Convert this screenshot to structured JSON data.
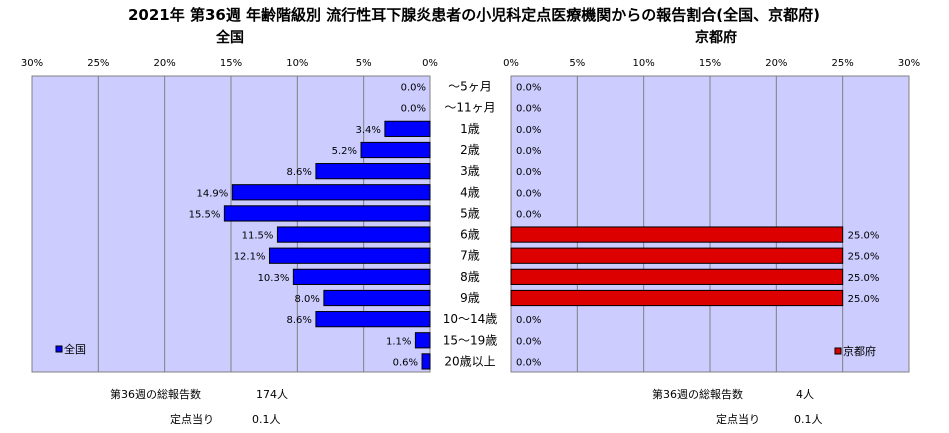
{
  "chart_data": {
    "type": "bar",
    "orientation": "horizontal",
    "title": "2021年 第36週 年齢階級別 流行性耳下腺炎患者の小児科定点医療機関からの報告割合(全国、京都府)",
    "categories": [
      "～5ヶ月",
      "～11ヶ月",
      "1歳",
      "2歳",
      "3歳",
      "4歳",
      "5歳",
      "6歳",
      "7歳",
      "8歳",
      "9歳",
      "10～14歳",
      "15～19歳",
      "20歳以上"
    ],
    "xlim": [
      0,
      30
    ],
    "ticks": [
      "30%",
      "25%",
      "20%",
      "15%",
      "10%",
      "5%",
      "0%"
    ],
    "ticks_right": [
      "0%",
      "5%",
      "10%",
      "15%",
      "20%",
      "25%",
      "30%"
    ],
    "grid": true,
    "series": [
      {
        "name": "全国",
        "panel_title": "全国",
        "color": "#0000ff",
        "values": [
          0.0,
          0.0,
          3.4,
          5.2,
          8.6,
          14.9,
          15.5,
          11.5,
          12.1,
          10.3,
          8.0,
          8.6,
          1.1,
          0.6
        ],
        "labels": [
          "0.0%",
          "0.0%",
          "3.4%",
          "5.2%",
          "8.6%",
          "14.9%",
          "15.5%",
          "11.5%",
          "12.1%",
          "10.3%",
          "8.0%",
          "8.6%",
          "1.1%",
          "0.6%"
        ],
        "legend_position": "bottom-left"
      },
      {
        "name": "京都府",
        "panel_title": "京都府",
        "color": "#dd0000",
        "values": [
          0.0,
          0.0,
          0.0,
          0.0,
          0.0,
          0.0,
          0.0,
          25.0,
          25.0,
          25.0,
          25.0,
          0.0,
          0.0,
          0.0
        ],
        "labels": [
          "0.0%",
          "0.0%",
          "0.0%",
          "0.0%",
          "0.0%",
          "0.0%",
          "0.0%",
          "25.0%",
          "25.0%",
          "25.0%",
          "25.0%",
          "0.0%",
          "0.0%",
          "0.0%"
        ],
        "legend_position": "bottom-right"
      }
    ]
  },
  "colors": {
    "plot_bg": "#ccccff",
    "grid": "#808080"
  },
  "footer": {
    "national": {
      "total_label": "第36週の総報告数",
      "total_value": "174人",
      "per_label": "定点当り",
      "per_value": "0.1人"
    },
    "kyoto": {
      "total_label": "第36週の総報告数",
      "total_value": "4人",
      "per_label": "定点当り",
      "per_value": "0.1人"
    }
  }
}
